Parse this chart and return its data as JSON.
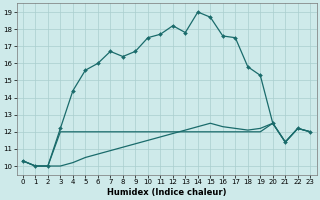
{
  "xlabel": "Humidex (Indice chaleur)",
  "xlim": [
    -0.5,
    23.5
  ],
  "ylim": [
    9.5,
    19.5
  ],
  "yticks": [
    10,
    11,
    12,
    13,
    14,
    15,
    16,
    17,
    18,
    19
  ],
  "xticks": [
    0,
    1,
    2,
    3,
    4,
    5,
    6,
    7,
    8,
    9,
    10,
    11,
    12,
    13,
    14,
    15,
    16,
    17,
    18,
    19,
    20,
    21,
    22,
    23
  ],
  "bg_color": "#ceeaea",
  "grid_color": "#aacece",
  "line_color": "#1a6b6b",
  "line1_x": [
    0,
    1,
    2,
    3,
    4,
    5,
    6,
    7,
    8,
    9,
    10,
    11,
    12,
    13,
    14,
    15,
    16,
    17,
    18,
    19,
    20,
    21,
    22,
    23
  ],
  "line1_y": [
    10.3,
    10.0,
    10.0,
    12.2,
    14.4,
    15.6,
    16.0,
    16.7,
    16.4,
    16.7,
    17.5,
    17.7,
    18.2,
    17.8,
    19.0,
    18.7,
    17.6,
    17.5,
    15.8,
    15.3,
    12.5,
    11.4,
    12.2,
    12.0
  ],
  "line2_x": [
    0,
    1,
    2,
    3,
    4,
    5,
    6,
    7,
    8,
    9,
    10,
    11,
    12,
    13,
    14,
    15,
    16,
    17,
    18,
    19,
    20,
    21,
    22,
    23
  ],
  "line2_y": [
    10.3,
    10.0,
    10.0,
    12.0,
    12.0,
    12.0,
    12.0,
    12.0,
    12.0,
    12.0,
    12.0,
    12.0,
    12.0,
    12.0,
    12.0,
    12.0,
    12.0,
    12.0,
    12.0,
    12.0,
    12.5,
    11.4,
    12.2,
    12.0
  ],
  "line3_x": [
    0,
    1,
    2,
    3,
    4,
    5,
    6,
    7,
    8,
    9,
    10,
    11,
    12,
    13,
    14,
    15,
    16,
    17,
    18,
    19,
    20,
    21,
    22,
    23
  ],
  "line3_y": [
    10.3,
    10.0,
    10.0,
    10.0,
    10.2,
    10.5,
    10.7,
    10.9,
    11.1,
    11.3,
    11.5,
    11.7,
    11.9,
    12.1,
    12.3,
    12.5,
    12.3,
    12.2,
    12.1,
    12.2,
    12.5,
    11.4,
    12.2,
    12.0
  ],
  "xlabel_fontsize": 6,
  "tick_fontsize": 5,
  "linewidth": 0.9,
  "marker_size": 2.0
}
